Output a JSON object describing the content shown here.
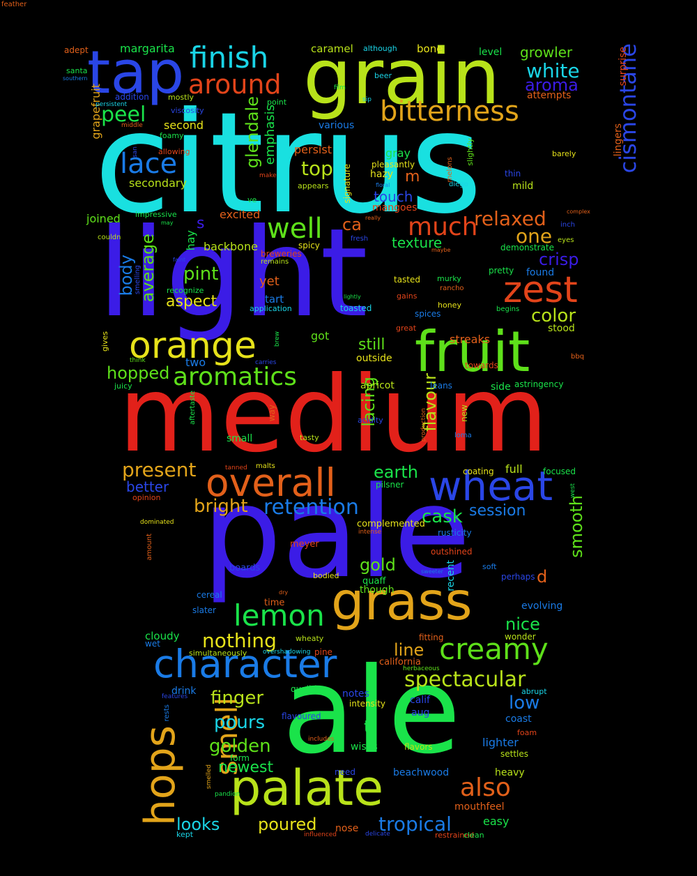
{
  "background_color": "#000000",
  "words": [
    {
      "text": "citrus",
      "color": "#19e0e0"
    },
    {
      "text": "light",
      "color": "#3b1ce6"
    },
    {
      "text": "medium",
      "color": "#e2211a"
    },
    {
      "text": "pale",
      "color": "#3b1ce6"
    },
    {
      "text": "ale",
      "color": "#1ae34a"
    },
    {
      "text": "grain",
      "color": "#b8e21a"
    },
    {
      "text": "tap",
      "color": "#2a46e6"
    },
    {
      "text": "fruit",
      "color": "#5ee01a"
    },
    {
      "text": "hops",
      "color": "#e2a41a"
    },
    {
      "text": "grass",
      "color": "#e2a41a"
    },
    {
      "text": "palate",
      "color": "#b8e21a"
    },
    {
      "text": "character",
      "color": "#1a7be6"
    },
    {
      "text": "overall",
      "color": "#e2601a"
    },
    {
      "text": "wheat",
      "color": "#2a46e6"
    },
    {
      "text": "orange",
      "color": "#e6e21a"
    },
    {
      "text": "finish",
      "color": "#1ad4e6"
    },
    {
      "text": "bitterness",
      "color": "#e2a41a"
    },
    {
      "text": "zest",
      "color": "#e2441a"
    },
    {
      "text": "cismontane",
      "color": "#2a46e6"
    },
    {
      "text": "lemon",
      "color": "#1ae34a"
    },
    {
      "text": "smell",
      "color": "#e2a41a"
    },
    {
      "text": "creamy",
      "color": "#5ee01a"
    },
    {
      "text": "lace",
      "color": "#1a7be6"
    },
    {
      "text": "around",
      "color": "#e2441a"
    },
    {
      "text": "aromatics",
      "color": "#5ee01a"
    },
    {
      "text": "well",
      "color": "#5ee01a"
    },
    {
      "text": "much",
      "color": "#e2441a"
    },
    {
      "text": "retention",
      "color": "#1a7be6"
    },
    {
      "text": "spectacular",
      "color": "#b8e21a"
    },
    {
      "text": "also",
      "color": "#e2601a"
    },
    {
      "text": "tropical",
      "color": "#1a7be6"
    },
    {
      "text": "nothing",
      "color": "#e6e21a"
    },
    {
      "text": "white",
      "color": "#1ad4e6"
    },
    {
      "text": "aroma",
      "color": "#3b1ce6"
    },
    {
      "text": "peel",
      "color": "#1ae34a"
    },
    {
      "text": "top",
      "color": "#b8e21a"
    },
    {
      "text": "relaxed",
      "color": "#e2601a"
    },
    {
      "text": "one",
      "color": "#e2a41a"
    },
    {
      "text": "crisp",
      "color": "#3b1ce6"
    },
    {
      "text": "color",
      "color": "#b8e21a"
    },
    {
      "text": "present",
      "color": "#e2a41a"
    },
    {
      "text": "earth",
      "color": "#1ae34a"
    },
    {
      "text": "bright",
      "color": "#e2a41a"
    },
    {
      "text": "cask",
      "color": "#1ae34a"
    },
    {
      "text": "session",
      "color": "#1a7be6"
    },
    {
      "text": "lacing",
      "color": "#5ee01a"
    },
    {
      "text": "flavour",
      "color": "#b8e21a"
    },
    {
      "text": "glendale",
      "color": "#5ee01a"
    },
    {
      "text": "emphasis",
      "color": "#1ae34a"
    },
    {
      "text": "average",
      "color": "#5ee01a"
    },
    {
      "text": "body",
      "color": "#1a7be6"
    },
    {
      "text": "hopped",
      "color": "#5ee01a"
    },
    {
      "text": "pint",
      "color": "#5ee01a"
    },
    {
      "text": "aspect",
      "color": "#e6e21a"
    },
    {
      "text": "still",
      "color": "#5ee01a"
    },
    {
      "text": "finger",
      "color": "#b8e21a"
    },
    {
      "text": "pours",
      "color": "#1ad4e6"
    },
    {
      "text": "golden",
      "color": "#5ee01a"
    },
    {
      "text": "poured",
      "color": "#e6e21a"
    },
    {
      "text": "looks",
      "color": "#1ad4e6"
    },
    {
      "text": "newest",
      "color": "#1ae34a"
    },
    {
      "text": "low",
      "color": "#1a7be6"
    },
    {
      "text": "gold",
      "color": "#5ee01a"
    },
    {
      "text": "smooth",
      "color": "#5ee01a"
    },
    {
      "text": "nice",
      "color": "#1ae34a"
    },
    {
      "text": "line",
      "color": "#e2a41a"
    },
    {
      "text": "better",
      "color": "#2a46e6"
    },
    {
      "text": "touch",
      "color": "#2a46e6"
    },
    {
      "text": "texture",
      "color": "#1ae34a"
    },
    {
      "text": "yet",
      "color": "#e2601a"
    },
    {
      "text": "growler",
      "color": "#5ee01a"
    },
    {
      "text": "margarita",
      "color": "#1ae34a"
    },
    {
      "text": "grapefruit",
      "color": "#e2a41a"
    },
    {
      "text": "s",
      "color": "#3b1ce6"
    },
    {
      "text": "ca",
      "color": "#e2601a"
    },
    {
      "text": "m",
      "color": "#e2601a"
    },
    {
      "text": "t",
      "color": "#1ae34a"
    },
    {
      "text": "d",
      "color": "#e2601a"
    },
    {
      "text": "secondary",
      "color": "#b8e21a"
    },
    {
      "text": "second",
      "color": "#e6e21a"
    },
    {
      "text": "joined",
      "color": "#5ee01a"
    },
    {
      "text": "backbone",
      "color": "#b8e21a"
    },
    {
      "text": "hay",
      "color": "#1ae34a"
    },
    {
      "text": "excited",
      "color": "#e2601a"
    },
    {
      "text": "persist",
      "color": "#e2601a"
    },
    {
      "text": "gray",
      "color": "#1ae34a"
    },
    {
      "text": "hazy",
      "color": "#e6e21a"
    },
    {
      "text": "mild",
      "color": "#b8e21a"
    },
    {
      "text": "found",
      "color": "#1a7be6"
    },
    {
      "text": "stood",
      "color": "#b8e21a"
    },
    {
      "text": "streaks",
      "color": "#e2601a"
    },
    {
      "text": "outside",
      "color": "#e6e21a"
    },
    {
      "text": "got",
      "color": "#5ee01a"
    },
    {
      "text": "tart",
      "color": "#1a7be6"
    },
    {
      "text": "two",
      "color": "#1a7be6"
    },
    {
      "text": "small",
      "color": "#1ae34a"
    },
    {
      "text": "apricot",
      "color": "#b8e21a"
    },
    {
      "text": "side",
      "color": "#1ae34a"
    },
    {
      "text": "full",
      "color": "#b8e21a"
    },
    {
      "text": "caramel",
      "color": "#b8e21a"
    },
    {
      "text": "bone",
      "color": "#e6e21a"
    },
    {
      "text": "level",
      "color": "#1ae34a"
    },
    {
      "text": "mangoes",
      "color": "#e2441a"
    },
    {
      "text": "cloudy",
      "color": "#1ae34a"
    },
    {
      "text": "drink",
      "color": "#1a7be6"
    },
    {
      "text": "notes",
      "color": "#2a46e6"
    },
    {
      "text": "calif",
      "color": "#2a46e6"
    },
    {
      "text": "aug",
      "color": "#2a46e6"
    },
    {
      "text": "coast",
      "color": "#1a7be6"
    },
    {
      "text": "lighter",
      "color": "#1a7be6"
    },
    {
      "text": "wisps",
      "color": "#1ae34a"
    },
    {
      "text": "beachwood",
      "color": "#1a7be6"
    },
    {
      "text": "heavy",
      "color": "#b8e21a"
    },
    {
      "text": "mouthfeel",
      "color": "#e2601a"
    },
    {
      "text": "easy",
      "color": "#1ae34a"
    },
    {
      "text": "nose",
      "color": "#e2601a"
    },
    {
      "text": "evolving",
      "color": "#1a7be6"
    },
    {
      "text": "wonder",
      "color": "#b8e21a"
    },
    {
      "text": "though",
      "color": "#5ee01a"
    },
    {
      "text": "various",
      "color": "#1a7be6"
    },
    {
      "text": "attempts",
      "color": "#e2601a"
    },
    {
      "text": "surprise",
      "color": "#e2441a"
    },
    {
      "text": "lingers",
      "color": "#e2601a"
    },
    {
      "text": "adept",
      "color": "#e2601a"
    },
    {
      "text": "santa",
      "color": "#1ae34a"
    },
    {
      "text": "southern",
      "color": "#1a7be6"
    },
    {
      "text": "addition",
      "color": "#2a46e6"
    },
    {
      "text": "mostly",
      "color": "#b8e21a"
    },
    {
      "text": "persistent",
      "color": "#1ad4e6"
    },
    {
      "text": "viscosity",
      "color": "#2a46e6"
    },
    {
      "text": "middle",
      "color": "#e2601a"
    },
    {
      "text": "foamy",
      "color": "#1ae34a"
    },
    {
      "text": "allowing",
      "color": "#e2441a"
    },
    {
      "text": "san",
      "color": "#2a46e6"
    },
    {
      "text": "make",
      "color": "#e2441a"
    },
    {
      "text": "point",
      "color": "#1ae34a"
    },
    {
      "text": "film",
      "color": "#1ae34a"
    },
    {
      "text": "beer",
      "color": "#1ad4e6"
    },
    {
      "text": "although",
      "color": "#1ad4e6"
    },
    {
      "text": "sip",
      "color": "#1ad4e6"
    },
    {
      "text": "signature",
      "color": "#e6e21a"
    },
    {
      "text": "pleasantly",
      "color": "#e6e21a"
    },
    {
      "text": "appears",
      "color": "#b8e21a"
    },
    {
      "text": "melons",
      "color": "#e2601a"
    },
    {
      "text": "slightly",
      "color": "#5ee01a"
    },
    {
      "text": "floral",
      "color": "#1a7be6"
    },
    {
      "text": "diego",
      "color": "#1ad4e6"
    },
    {
      "text": "thin",
      "color": "#2a46e6"
    },
    {
      "text": "barely",
      "color": "#e6e21a"
    },
    {
      "text": "complex",
      "color": "#e2601a"
    },
    {
      "text": "inch",
      "color": "#2a46e6"
    },
    {
      "text": "eyes",
      "color": "#b8e21a"
    },
    {
      "text": "demonstrate",
      "color": "#1ae34a"
    },
    {
      "text": "maybe",
      "color": "#e2601a"
    },
    {
      "text": "pretty",
      "color": "#1ae34a"
    },
    {
      "text": "impressive",
      "color": "#1ae34a"
    },
    {
      "text": "may",
      "color": "#1ae34a"
    },
    {
      "text": "couldn",
      "color": "#b8e21a"
    },
    {
      "text": "ve",
      "color": "#1ae34a"
    },
    {
      "text": "really",
      "color": "#e2601a"
    },
    {
      "text": "fresh",
      "color": "#2a46e6"
    },
    {
      "text": "spicy",
      "color": "#e6e21a"
    },
    {
      "text": "breweries",
      "color": "#e2441a"
    },
    {
      "text": "remains",
      "color": "#b8e21a"
    },
    {
      "text": "faint",
      "color": "#2a46e6"
    },
    {
      "text": "smelling",
      "color": "#2a46e6"
    },
    {
      "text": "recognize",
      "color": "#1ae34a"
    },
    {
      "text": "application",
      "color": "#1ad4e6"
    },
    {
      "text": "lightly",
      "color": "#1ae34a"
    },
    {
      "text": "tasted",
      "color": "#e6e21a"
    },
    {
      "text": "murky",
      "color": "#1ae34a"
    },
    {
      "text": "rancho",
      "color": "#e2601a"
    },
    {
      "text": "gains",
      "color": "#e2441a"
    },
    {
      "text": "honey",
      "color": "#e6e21a"
    },
    {
      "text": "begins",
      "color": "#1ae34a"
    },
    {
      "text": "toasted",
      "color": "#1ad4e6"
    },
    {
      "text": "spices",
      "color": "#1a7be6"
    },
    {
      "text": "great",
      "color": "#e2441a"
    },
    {
      "text": "gives",
      "color": "#e6e21a"
    },
    {
      "text": "think",
      "color": "#5ee01a"
    },
    {
      "text": "carries",
      "color": "#2a46e6"
    },
    {
      "text": "brew",
      "color": "#1ae34a"
    },
    {
      "text": "towards",
      "color": "#e2441a"
    },
    {
      "text": "bbq",
      "color": "#e2601a"
    },
    {
      "text": "juicy",
      "color": "#1ae34a"
    },
    {
      "text": "aftertaste",
      "color": "#1ae34a"
    },
    {
      "text": "way",
      "color": "#e2601a"
    },
    {
      "text": "acidity",
      "color": "#2a46e6"
    },
    {
      "text": "tasty",
      "color": "#b8e21a"
    },
    {
      "text": "leans",
      "color": "#1a7be6"
    },
    {
      "text": "astringency",
      "color": "#1ae34a"
    },
    {
      "text": "production",
      "color": "#e2601a"
    },
    {
      "text": "new",
      "color": "#b8e21a"
    },
    {
      "text": "loma",
      "color": "#1a7be6"
    },
    {
      "text": "tanned",
      "color": "#e2441a"
    },
    {
      "text": "malts",
      "color": "#e6e21a"
    },
    {
      "text": "coating",
      "color": "#e6e21a"
    },
    {
      "text": "focused",
      "color": "#1ae34a"
    },
    {
      "text": "pilsner",
      "color": "#1ae34a"
    },
    {
      "text": "opinion",
      "color": "#e2441a"
    },
    {
      "text": "west",
      "color": "#1ae34a"
    },
    {
      "text": "dominated",
      "color": "#e6e21a"
    },
    {
      "text": "complemented",
      "color": "#e6e21a"
    },
    {
      "text": "intense",
      "color": "#e2601a"
    },
    {
      "text": "rusticity",
      "color": "#1a7be6"
    },
    {
      "text": "meyer",
      "color": "#e2441a"
    },
    {
      "text": "outshined",
      "color": "#e2441a"
    },
    {
      "text": "amount",
      "color": "#e2601a"
    },
    {
      "text": "boards",
      "color": "#2a46e6"
    },
    {
      "text": "bodied",
      "color": "#e6e21a"
    },
    {
      "text": "quaff",
      "color": "#1ae34a"
    },
    {
      "text": "sweeter",
      "color": "#1a7be6"
    },
    {
      "text": "recent",
      "color": "#1ad4e6"
    },
    {
      "text": "soft",
      "color": "#1a7be6"
    },
    {
      "text": "perhaps",
      "color": "#2a46e6"
    },
    {
      "text": "cereal",
      "color": "#1a7be6"
    },
    {
      "text": "dry",
      "color": "#e2601a"
    },
    {
      "text": "time",
      "color": "#e2601a"
    },
    {
      "text": "slater",
      "color": "#1a7be6"
    },
    {
      "text": "wet",
      "color": "#1a7be6"
    },
    {
      "text": "wheaty",
      "color": "#b8e21a"
    },
    {
      "text": "fitting",
      "color": "#e2601a"
    },
    {
      "text": "simultaneously",
      "color": "#b8e21a"
    },
    {
      "text": "overshadowing",
      "color": "#1ad4e6"
    },
    {
      "text": "pine",
      "color": "#e2441a"
    },
    {
      "text": "california",
      "color": "#e2601a"
    },
    {
      "text": "herbaceous",
      "color": "#5ee01a"
    },
    {
      "text": "features",
      "color": "#2a46e6"
    },
    {
      "text": "qualities",
      "color": "#1ae34a"
    },
    {
      "text": "intensity",
      "color": "#e6e21a"
    },
    {
      "text": "abrupt",
      "color": "#1ad4e6"
    },
    {
      "text": "rests",
      "color": "#1a7be6"
    },
    {
      "text": "flavoured",
      "color": "#2a46e6"
    },
    {
      "text": "includes",
      "color": "#e2601a"
    },
    {
      "text": "foam",
      "color": "#e2441a"
    },
    {
      "text": "form",
      "color": "#1ae34a"
    },
    {
      "text": "flavors",
      "color": "#b8e21a"
    },
    {
      "text": "settles",
      "color": "#b8e21a"
    },
    {
      "text": "smelled",
      "color": "#e2a41a"
    },
    {
      "text": "need",
      "color": "#2a46e6"
    },
    {
      "text": "pandion",
      "color": "#1ae34a"
    },
    {
      "text": "kept",
      "color": "#1ad4e6"
    },
    {
      "text": "influenced",
      "color": "#e2441a"
    },
    {
      "text": "delicate",
      "color": "#2a46e6"
    },
    {
      "text": "restrained",
      "color": "#e2441a"
    },
    {
      "text": "clean",
      "color": "#1ae34a"
    },
    {
      "text": "feather",
      "color": "#e2601a"
    }
  ]
}
